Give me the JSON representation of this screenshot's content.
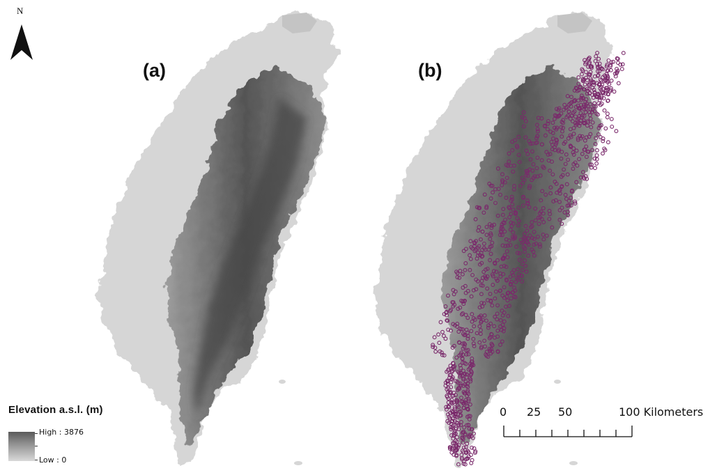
{
  "map": {
    "north_label": "N",
    "panels": [
      {
        "id": "a",
        "label": "(a)"
      },
      {
        "id": "b",
        "label": "(b)"
      }
    ],
    "legend": {
      "title": "Elevation a.s.l. (m)",
      "high_label": "High : 3876",
      "low_label": "Low : 0",
      "high_value": 3876,
      "low_value": 0,
      "high_color": "#5a5a5a",
      "low_color": "#d9d9d9"
    },
    "scale_bar": {
      "labels": [
        "0",
        "25",
        "50",
        "100 Kilometers"
      ],
      "values_km": [
        0,
        25,
        50,
        100
      ],
      "minor_divisions": 8
    },
    "colors": {
      "lowland": "#d6d6d6",
      "mountain": "#4e4e4e",
      "marker": "#7a2a6b"
    }
  }
}
